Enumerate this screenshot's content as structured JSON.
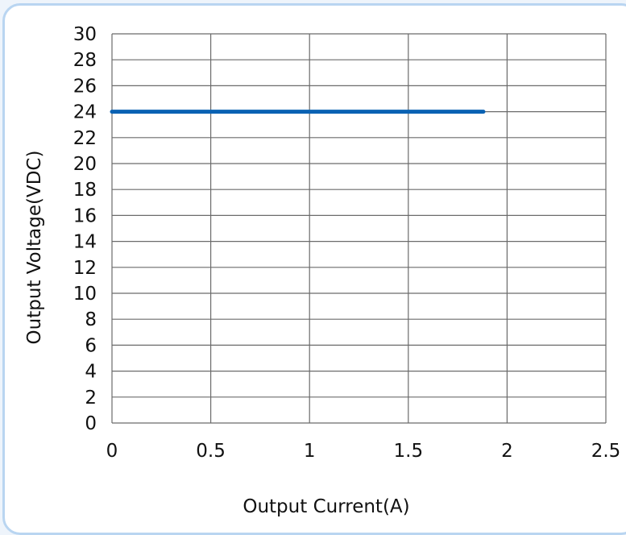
{
  "chart_data": {
    "type": "line",
    "title": "",
    "xlabel": "Output Current(A)",
    "ylabel": "Output Voltage(VDC)",
    "xlim": [
      0,
      2.5
    ],
    "ylim": [
      0,
      30
    ],
    "x_ticks": [
      "0",
      "0.5",
      "1",
      "1.5",
      "2",
      "2.5"
    ],
    "y_ticks": [
      "0",
      "2",
      "4",
      "6",
      "8",
      "10",
      "12",
      "14",
      "16",
      "18",
      "20",
      "22",
      "24",
      "26",
      "28",
      "30"
    ],
    "grid": true,
    "series": [
      {
        "x": [
          0,
          1.88
        ],
        "y": [
          24,
          24
        ],
        "color": "#0a62b3"
      }
    ]
  },
  "colors": {
    "line": "#0a62b3",
    "grid": "#6b6b6b",
    "frame": "#b9d5f1"
  }
}
